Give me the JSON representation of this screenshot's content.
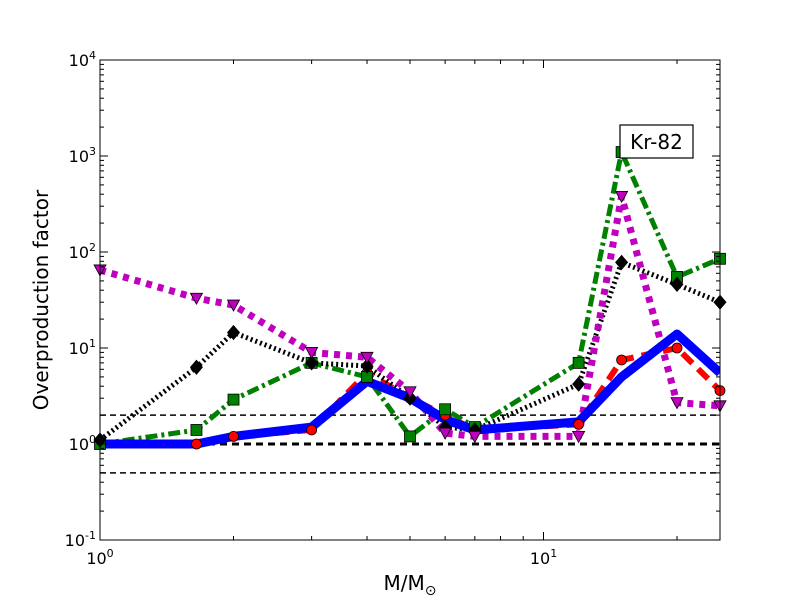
{
  "chart_data": {
    "type": "line",
    "xlabel": "M/M⊙",
    "ylabel": "Overproduction factor",
    "xscale": "log",
    "yscale": "log",
    "xlim": [
      1,
      25
    ],
    "ylim": [
      0.1,
      10000
    ],
    "annotation": "Kr-82",
    "x_ticks": [
      {
        "value": 1,
        "base": "10",
        "exp": "0"
      },
      {
        "value": 10,
        "base": "10",
        "exp": "1"
      }
    ],
    "y_ticks": [
      {
        "value": 0.1,
        "base": "10",
        "exp": "-1"
      },
      {
        "value": 1,
        "base": "10",
        "exp": "0"
      },
      {
        "value": 10,
        "base": "10",
        "exp": "1"
      },
      {
        "value": 100,
        "base": "10",
        "exp": "2"
      },
      {
        "value": 1000,
        "base": "10",
        "exp": "3"
      },
      {
        "value": 10000,
        "base": "10",
        "exp": "4"
      }
    ],
    "reference_lines": [
      {
        "y": 2.0,
        "color": "#000000",
        "style": "dashed-thin"
      },
      {
        "y": 1.0,
        "color": "#000000",
        "style": "dashed-thick"
      },
      {
        "y": 0.5,
        "color": "#000000",
        "style": "dashed-thin"
      }
    ],
    "series": [
      {
        "color": "#ff0000",
        "style": "dashed",
        "marker": "circle",
        "x": [
          1.0,
          1.65,
          2.0,
          3.0,
          4.0,
          5.0,
          6.0,
          7.0,
          12.0,
          15.0,
          20.0,
          25.0
        ],
        "y": [
          1.0,
          1.0,
          1.2,
          1.4,
          5.5,
          3.0,
          2.0,
          1.4,
          1.6,
          7.5,
          10.0,
          3.6
        ]
      },
      {
        "color": "#0000ff",
        "style": "solid",
        "marker": "none",
        "x": [
          1.0,
          1.65,
          2.0,
          3.0,
          4.0,
          5.0,
          6.0,
          7.0,
          12.0,
          15.0,
          20.0,
          25.0
        ],
        "y": [
          1.0,
          1.0,
          1.2,
          1.5,
          4.5,
          3.0,
          1.8,
          1.4,
          1.7,
          5.0,
          14.0,
          5.5
        ]
      },
      {
        "color": "#008000",
        "style": "dashdot",
        "marker": "square",
        "x": [
          1.0,
          1.65,
          2.0,
          3.0,
          4.0,
          5.0,
          6.0,
          7.0,
          12.0,
          15.0,
          20.0,
          25.0
        ],
        "y": [
          1.0,
          1.4,
          2.9,
          7.0,
          5.0,
          1.2,
          2.3,
          1.5,
          7.0,
          1100,
          55.0,
          85.0
        ]
      },
      {
        "color": "#000000",
        "style": "dotted",
        "marker": "diamond",
        "x": [
          1.0,
          1.65,
          2.0,
          3.0,
          4.0,
          5.0,
          6.0,
          7.0,
          12.0,
          15.0,
          20.0,
          25.0
        ],
        "y": [
          1.1,
          6.3,
          14.5,
          7.0,
          6.5,
          3.0,
          1.5,
          1.4,
          4.2,
          78.0,
          46.0,
          30.0
        ]
      },
      {
        "color": "#bf00bf",
        "style": "dotted-thick",
        "marker": "triangle-down",
        "x": [
          1.0,
          1.65,
          2.0,
          3.0,
          4.0,
          5.0,
          6.0,
          7.0,
          12.0,
          15.0,
          20.0,
          25.0
        ],
        "y": [
          65.0,
          33.0,
          28.0,
          9.0,
          8.0,
          3.5,
          1.3,
          1.2,
          1.2,
          380.0,
          2.7,
          2.5
        ]
      }
    ]
  }
}
